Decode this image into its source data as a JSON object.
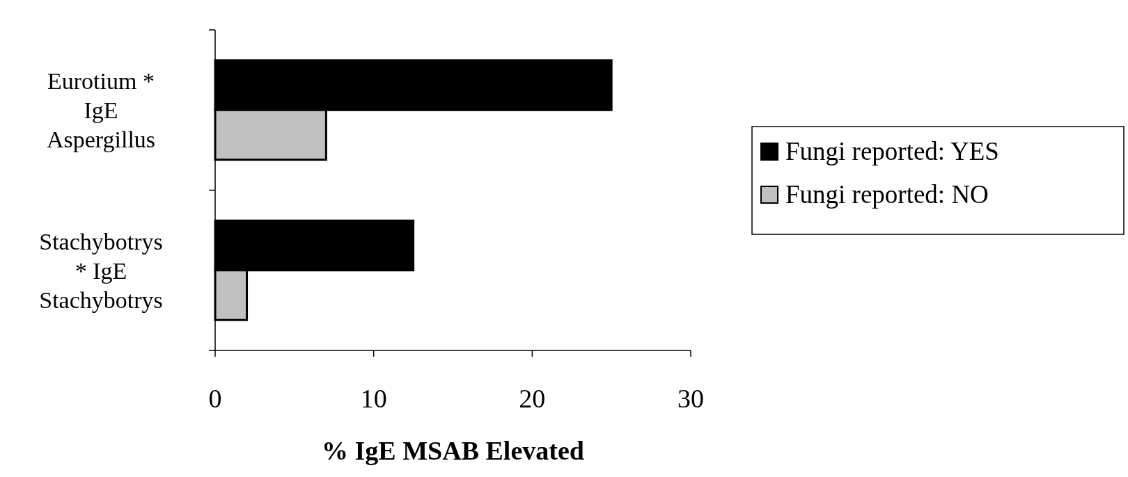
{
  "chart_data": {
    "type": "bar",
    "orientation": "horizontal",
    "xlabel": "%  IgE MSAB Elevated",
    "categories": [
      "Eurotium * IgE Aspergillus",
      "Stachybotrys * IgE Stachybotrys"
    ],
    "series": [
      {
        "name": "Fungi reported: YES",
        "color": "#000000",
        "values": [
          25,
          12.5
        ]
      },
      {
        "name": "Fungi reported: NO",
        "color": "#c0c0c0",
        "values": [
          7,
          2
        ]
      }
    ],
    "xlim": [
      0,
      30
    ],
    "xticks": [
      0,
      10,
      20,
      30
    ],
    "grid": false,
    "legend": "right"
  }
}
